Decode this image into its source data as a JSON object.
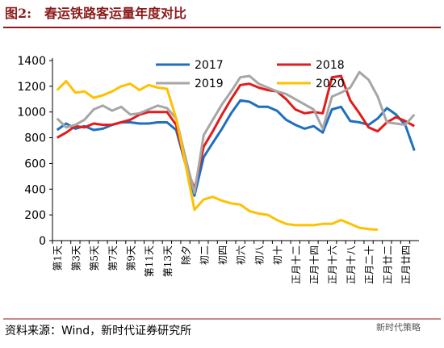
{
  "header": {
    "title": "图2:　春运铁路客运量年度对比"
  },
  "chart_data": {
    "type": "line",
    "categories": [
      "第1天",
      null,
      "第3天",
      null,
      "第5天",
      null,
      "第7天",
      null,
      "第9天",
      null,
      "第11天",
      null,
      "第13天",
      null,
      "除夕",
      null,
      "初二",
      null,
      "初四",
      null,
      "初六",
      null,
      "初八",
      null,
      "初十",
      null,
      "正月十二",
      null,
      "正月十四",
      null,
      "正月十六",
      null,
      "正月十八",
      null,
      "正月二十",
      null,
      "正月廿二",
      null,
      "正月廿四",
      null
    ],
    "series": [
      {
        "name": "2017",
        "color": "#1f6fc0",
        "values": [
          860,
          910,
          870,
          890,
          860,
          870,
          900,
          920,
          920,
          910,
          910,
          920,
          920,
          860,
          600,
          350,
          650,
          760,
          870,
          990,
          1090,
          1080,
          1040,
          1040,
          1010,
          940,
          900,
          870,
          890,
          840,
          1020,
          1040,
          930,
          920,
          900,
          950,
          1030,
          980,
          900,
          700
        ]
      },
      {
        "name": "2018",
        "color": "#e21b1b",
        "values": [
          800,
          840,
          890,
          880,
          910,
          900,
          900,
          920,
          940,
          980,
          1000,
          1000,
          1000,
          900,
          600,
          400,
          730,
          850,
          980,
          1100,
          1210,
          1220,
          1190,
          1170,
          1160,
          1100,
          1020,
          990,
          1000,
          990,
          1270,
          1280,
          1090,
          990,
          880,
          850,
          920,
          960,
          930,
          890
        ]
      },
      {
        "name": "2019",
        "color": "#a6a6a6",
        "values": [
          950,
          880,
          900,
          940,
          1020,
          1050,
          1010,
          1040,
          980,
          990,
          1020,
          1050,
          1030,
          950,
          650,
          370,
          820,
          940,
          1060,
          1160,
          1270,
          1280,
          1220,
          1190,
          1160,
          1140,
          1100,
          1060,
          1020,
          870,
          1120,
          1150,
          1190,
          1310,
          1250,
          1120,
          920,
          910,
          900,
          980
        ]
      },
      {
        "name": "2020",
        "color": "#ffc000",
        "values": [
          1170,
          1240,
          1150,
          1160,
          1110,
          1130,
          1160,
          1200,
          1220,
          1170,
          1210,
          1190,
          1180,
          950,
          600,
          240,
          320,
          340,
          310,
          290,
          280,
          230,
          210,
          200,
          160,
          130,
          120,
          120,
          120,
          130,
          130,
          160,
          130,
          100,
          90,
          85,
          null,
          null,
          null,
          null
        ]
      }
    ],
    "ylim": [
      0,
      1400
    ],
    "yticks": [
      0,
      200,
      400,
      600,
      800,
      1000,
      1200,
      1400
    ]
  },
  "footer": {
    "source": "资料来源：Wind，新时代证券研究所",
    "watermark": "新时代策略"
  }
}
